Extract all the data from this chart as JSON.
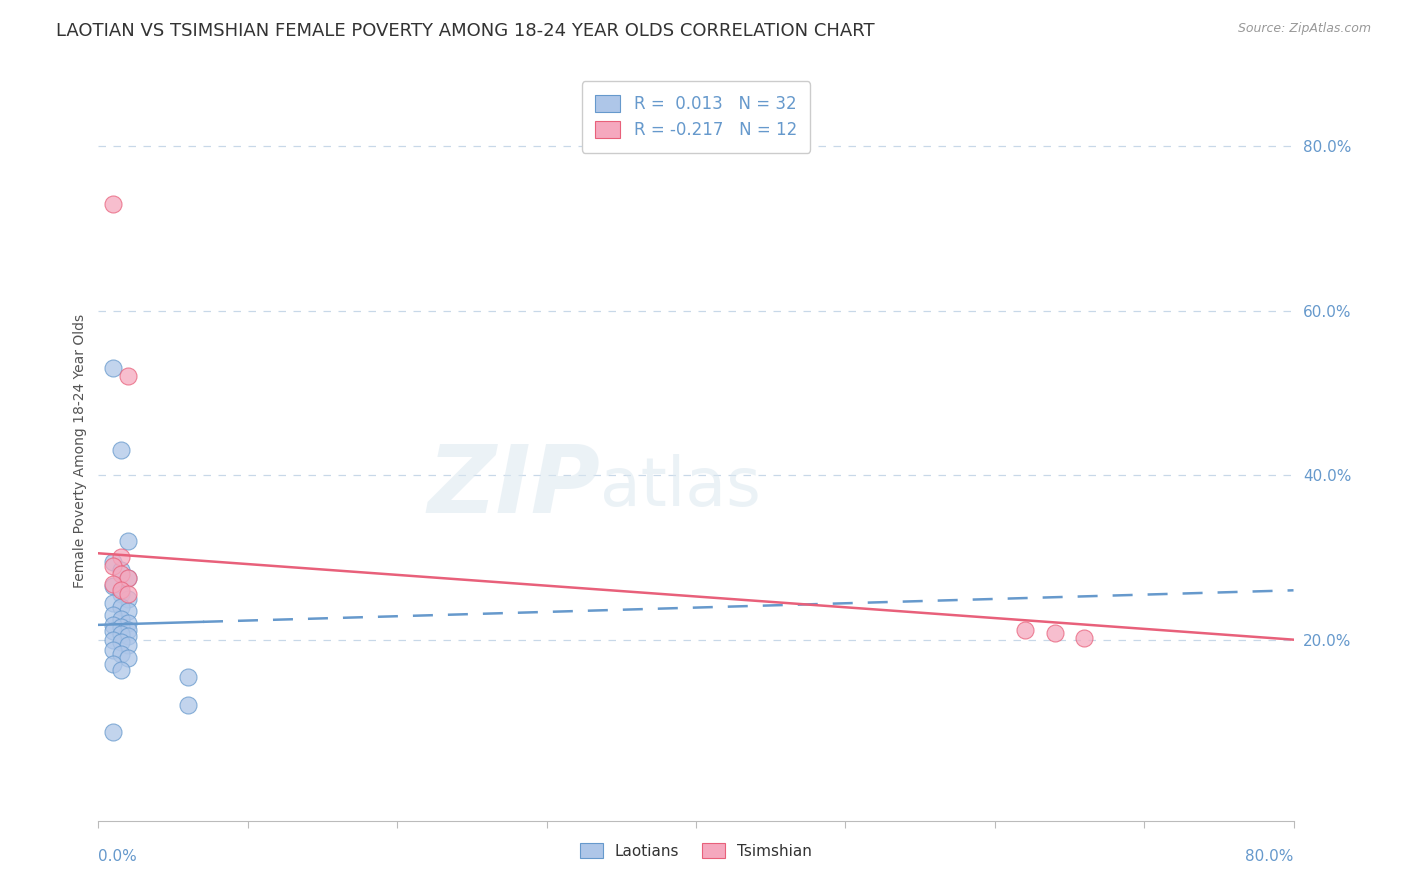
{
  "title": "LAOTIAN VS TSIMSHIAN FEMALE POVERTY AMONG 18-24 YEAR OLDS CORRELATION CHART",
  "source": "Source: ZipAtlas.com",
  "ylabel": "Female Poverty Among 18-24 Year Olds",
  "y_tick_labels": [
    "20.0%",
    "40.0%",
    "60.0%",
    "80.0%"
  ],
  "y_tick_values": [
    0.2,
    0.4,
    0.6,
    0.8
  ],
  "xmin": 0.0,
  "xmax": 0.8,
  "ymin": -0.02,
  "ymax": 0.88,
  "laotian_color": "#aec6e8",
  "tsimshian_color": "#f5a8be",
  "laotian_R": 0.013,
  "laotian_N": 32,
  "tsimshian_R": -0.217,
  "tsimshian_N": 12,
  "watermark_zip": "ZIP",
  "watermark_atlas": "atlas",
  "background_color": "#ffffff",
  "grid_color": "#c8d8e8",
  "laotian_line_color": "#6699cc",
  "tsimshian_line_color": "#e8607a",
  "laotian_scatter": [
    [
      0.01,
      0.53
    ],
    [
      0.015,
      0.43
    ],
    [
      0.02,
      0.32
    ],
    [
      0.01,
      0.295
    ],
    [
      0.015,
      0.285
    ],
    [
      0.02,
      0.275
    ],
    [
      0.01,
      0.265
    ],
    [
      0.015,
      0.255
    ],
    [
      0.02,
      0.25
    ],
    [
      0.01,
      0.245
    ],
    [
      0.015,
      0.24
    ],
    [
      0.02,
      0.235
    ],
    [
      0.01,
      0.23
    ],
    [
      0.015,
      0.225
    ],
    [
      0.02,
      0.22
    ],
    [
      0.01,
      0.218
    ],
    [
      0.015,
      0.215
    ],
    [
      0.02,
      0.212
    ],
    [
      0.01,
      0.21
    ],
    [
      0.015,
      0.207
    ],
    [
      0.02,
      0.204
    ],
    [
      0.01,
      0.2
    ],
    [
      0.015,
      0.197
    ],
    [
      0.02,
      0.193
    ],
    [
      0.01,
      0.188
    ],
    [
      0.015,
      0.183
    ],
    [
      0.02,
      0.178
    ],
    [
      0.01,
      0.17
    ],
    [
      0.015,
      0.163
    ],
    [
      0.06,
      0.155
    ],
    [
      0.01,
      0.088
    ],
    [
      0.06,
      0.12
    ]
  ],
  "tsimshian_scatter": [
    [
      0.01,
      0.73
    ],
    [
      0.02,
      0.52
    ],
    [
      0.015,
      0.3
    ],
    [
      0.01,
      0.29
    ],
    [
      0.015,
      0.28
    ],
    [
      0.02,
      0.275
    ],
    [
      0.01,
      0.268
    ],
    [
      0.015,
      0.26
    ],
    [
      0.02,
      0.255
    ],
    [
      0.62,
      0.212
    ],
    [
      0.64,
      0.208
    ],
    [
      0.66,
      0.202
    ]
  ],
  "laotian_line_y0": 0.218,
  "laotian_line_y1": 0.26,
  "tsimshian_line_y0": 0.305,
  "tsimshian_line_y1": 0.2,
  "title_fontsize": 13,
  "axis_label_fontsize": 10,
  "tick_fontsize": 11
}
